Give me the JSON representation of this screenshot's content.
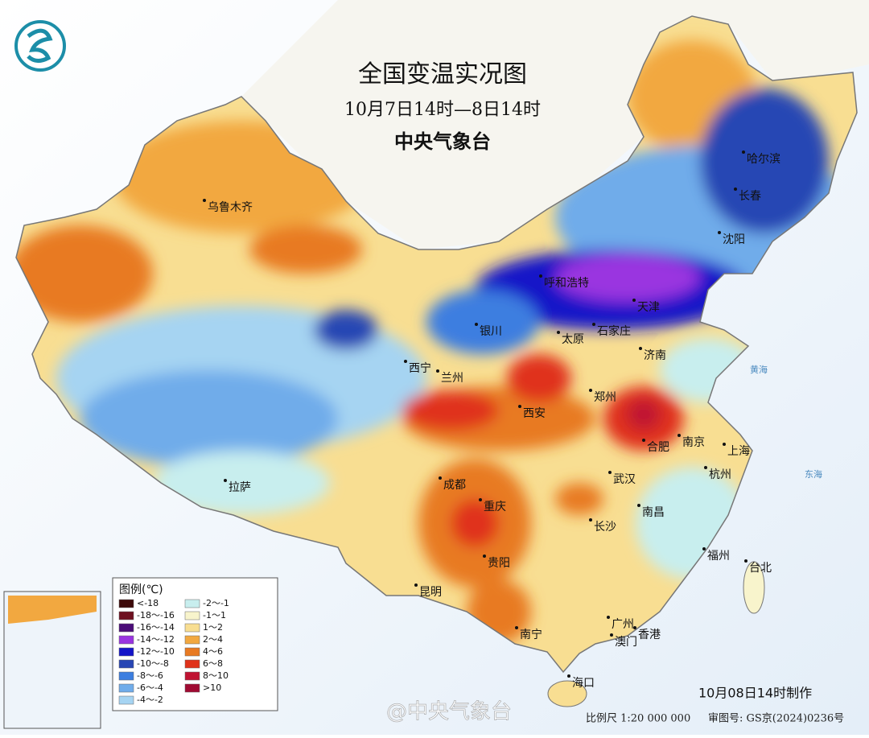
{
  "header": {
    "title": "全国变温实况图",
    "subtitle": "10月7日14时—8日14时",
    "issuer": "中央气象台"
  },
  "legend": {
    "title": "图例(℃)",
    "items": [
      {
        "label": "<-18",
        "color": "#3d0a0a"
      },
      {
        "label": "-18～-16",
        "color": "#6e1020"
      },
      {
        "label": "-16～-14",
        "color": "#4a0c78"
      },
      {
        "label": "-14～-12",
        "color": "#9a34e0"
      },
      {
        "label": "-12～-10",
        "color": "#1414c8"
      },
      {
        "label": "-10～-8",
        "color": "#2846b4"
      },
      {
        "label": "-8～-6",
        "color": "#3c7ee0"
      },
      {
        "label": "-6～-4",
        "color": "#70acea"
      },
      {
        "label": "-4～-2",
        "color": "#a6d4f2"
      },
      {
        "label": "-2～-1",
        "color": "#c8eeee"
      },
      {
        "label": "-1～1",
        "color": "#f8f4cc"
      },
      {
        "label": "1～2",
        "color": "#f8de92"
      },
      {
        "label": "2～4",
        "color": "#f2a840"
      },
      {
        "label": "4～6",
        "color": "#e87a22"
      },
      {
        "label": "6～8",
        "color": "#e0321a"
      },
      {
        "label": "8～10",
        "color": "#c01232"
      },
      {
        "label": ">10",
        "color": "#a00a32"
      }
    ]
  },
  "cities": [
    {
      "name": "乌鲁木齐"
    },
    {
      "name": "哈尔滨"
    },
    {
      "name": "长春"
    },
    {
      "name": "沈阳"
    },
    {
      "name": "呼和浩特"
    },
    {
      "name": "天津"
    },
    {
      "name": "银川"
    },
    {
      "name": "太原"
    },
    {
      "name": "石家庄"
    },
    {
      "name": "济南"
    },
    {
      "name": "西宁"
    },
    {
      "name": "兰州"
    },
    {
      "name": "西安"
    },
    {
      "name": "郑州"
    },
    {
      "name": "合肥"
    },
    {
      "name": "南京"
    },
    {
      "name": "上海"
    },
    {
      "name": "杭州"
    },
    {
      "name": "武汉"
    },
    {
      "name": "拉萨"
    },
    {
      "name": "成都"
    },
    {
      "name": "重庆"
    },
    {
      "name": "长沙"
    },
    {
      "name": "南昌"
    },
    {
      "name": "福州"
    },
    {
      "name": "台北"
    },
    {
      "name": "贵阳"
    },
    {
      "name": "昆明"
    },
    {
      "name": "南宁"
    },
    {
      "name": "广州"
    },
    {
      "name": "香港"
    },
    {
      "name": "澳门"
    },
    {
      "name": "海口"
    }
  ],
  "seas": [
    {
      "name": "黄海"
    },
    {
      "name": "东海"
    }
  ],
  "footer": {
    "made": "10月08日14时制作",
    "scale": "比例尺 1:20 000 000",
    "approval": "审图号: GS京(2024)0236号",
    "watermark": "@中央气象台"
  }
}
